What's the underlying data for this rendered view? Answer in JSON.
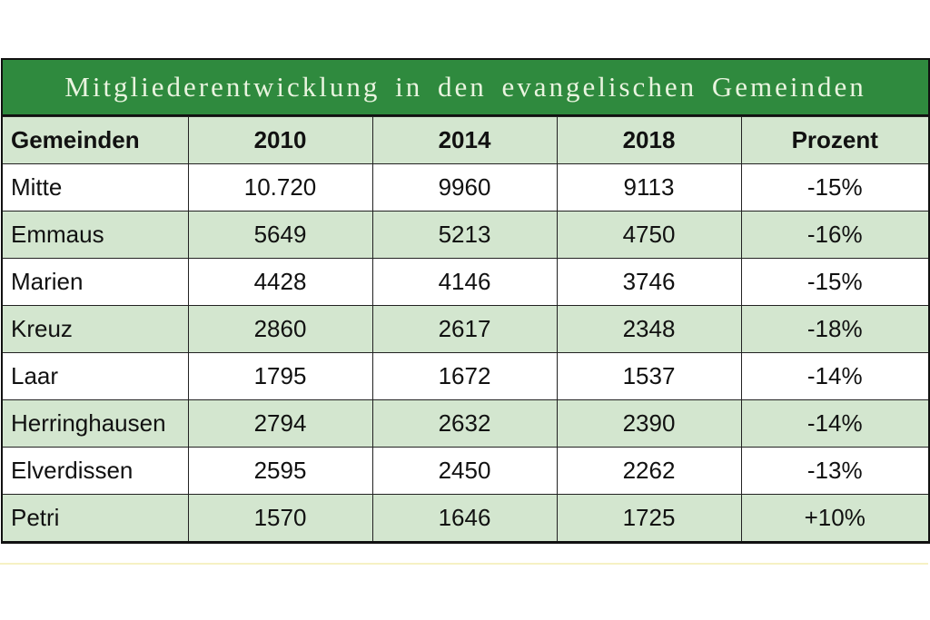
{
  "table": {
    "title": "Mitgliederentwicklung in den evangelischen Gemeinden",
    "header": [
      "Gemeinden",
      "2010",
      "2014",
      "2018",
      "Prozent"
    ],
    "rows": [
      [
        "Mitte",
        "10.720",
        "9960",
        "9113",
        "-15%"
      ],
      [
        "Emmaus",
        "5649",
        "5213",
        "4750",
        "-16%"
      ],
      [
        "Marien",
        "4428",
        "4146",
        "3746",
        "-15%"
      ],
      [
        "Kreuz",
        "2860",
        "2617",
        "2348",
        "-18%"
      ],
      [
        "Laar",
        "1795",
        "1672",
        "1537",
        "-14%"
      ],
      [
        "Herringhausen",
        "2794",
        "2632",
        "2390",
        "-14%"
      ],
      [
        "Elverdissen",
        "2595",
        "2450",
        "2262",
        "-13%"
      ],
      [
        "Petri",
        "1570",
        "1646",
        "1725",
        "+10%"
      ]
    ]
  }
}
